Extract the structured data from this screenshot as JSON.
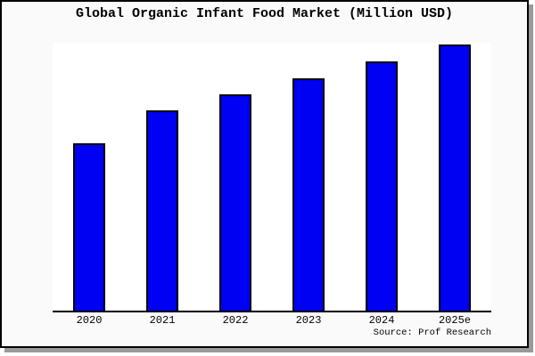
{
  "card": {
    "background": "#fafafa",
    "border_color": "#000000",
    "shadow_color": "#9a9a9a"
  },
  "chart_data": {
    "type": "bar",
    "title": "Global Organic Infant Food Market (Million USD)",
    "categories": [
      "2020",
      "2021",
      "2022",
      "2023",
      "2024",
      "2025e"
    ],
    "values": [
      63,
      75.2,
      81.4,
      87.4,
      93.7,
      100
    ],
    "values_note": "No y-axis labels shown in chart; values are relative bar heights normalized so 2025e = 100",
    "xlabel": "",
    "ylabel": "",
    "ylim": [
      0,
      100.7
    ],
    "grid": false,
    "legend": false,
    "y_axis_visible": false,
    "bar_color": "#0000F2",
    "bar_border_color": "#000000",
    "plot_background": "#ffffff",
    "source": "Source: Prof Research"
  }
}
